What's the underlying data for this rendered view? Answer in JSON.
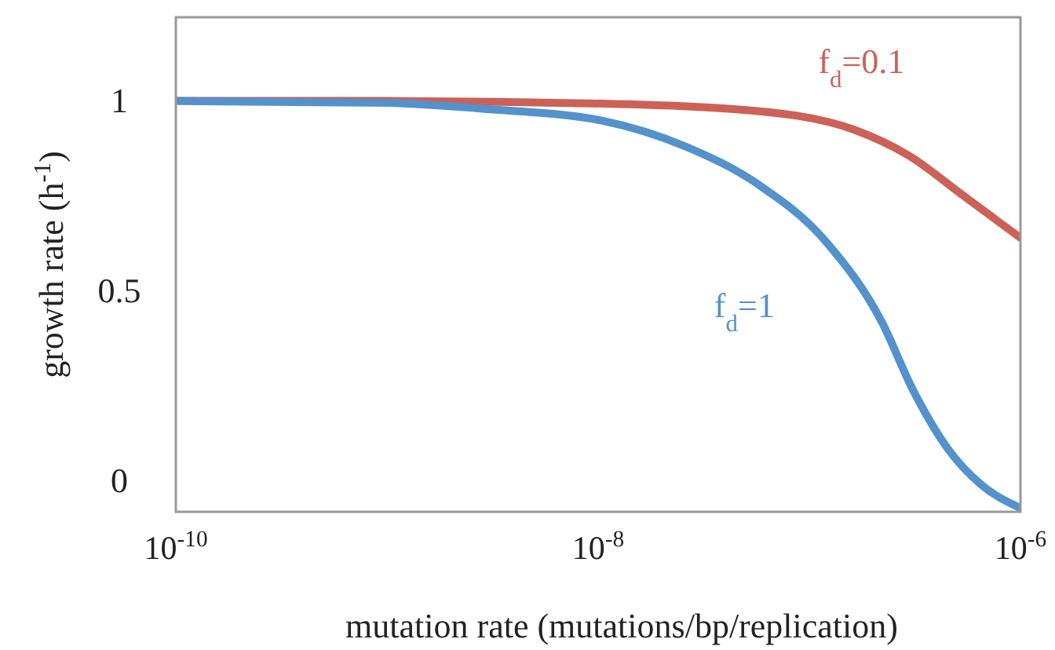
{
  "chart_data": {
    "type": "line",
    "xlabel": "mutation rate (mutations/bp/replication)",
    "ylabel": "growth rate (h$^{-1}$)",
    "log": "x",
    "xlim": [
      1e-10,
      1e-06
    ],
    "xticks": [
      {
        "value": 1e-10,
        "label": "10$^{-10}$"
      },
      {
        "value": 1e-08,
        "label": "10$^{-8}$"
      },
      {
        "value": 1e-06,
        "label": "10$^{-6}$"
      }
    ],
    "ylim": [
      -0.08,
      1.22
    ],
    "yticks": [
      0,
      0.5,
      1
    ],
    "grid": false,
    "legend": false,
    "marker": "none",
    "line_style": "solid",
    "series": [
      {
        "name": "f$_{d}$=0.1",
        "color": "#cc6158",
        "x": [
          1e-10,
          1e-09,
          1.05e-08,
          6.6e-08,
          1.62e-07,
          2.95e-07,
          5.4e-07,
          1e-06
        ],
        "values": [
          1.0,
          1.0,
          0.993,
          0.97,
          0.925,
          0.857,
          0.75,
          0.64
        ]
      },
      {
        "name": "f$_{d}$=1",
        "color": "#5392cb",
        "x": [
          1e-10,
          1e-09,
          3.1e-09,
          1.05e-08,
          2.6e-08,
          5.75e-08,
          1.2e-07,
          2.2e-07,
          3.1e-07,
          4.5e-07,
          6.5e-07,
          1e-06
        ],
        "values": [
          1.0,
          0.995,
          0.978,
          0.948,
          0.88,
          0.78,
          0.63,
          0.42,
          0.24,
          0.088,
          -0.008,
          -0.07
        ]
      }
    ]
  }
}
